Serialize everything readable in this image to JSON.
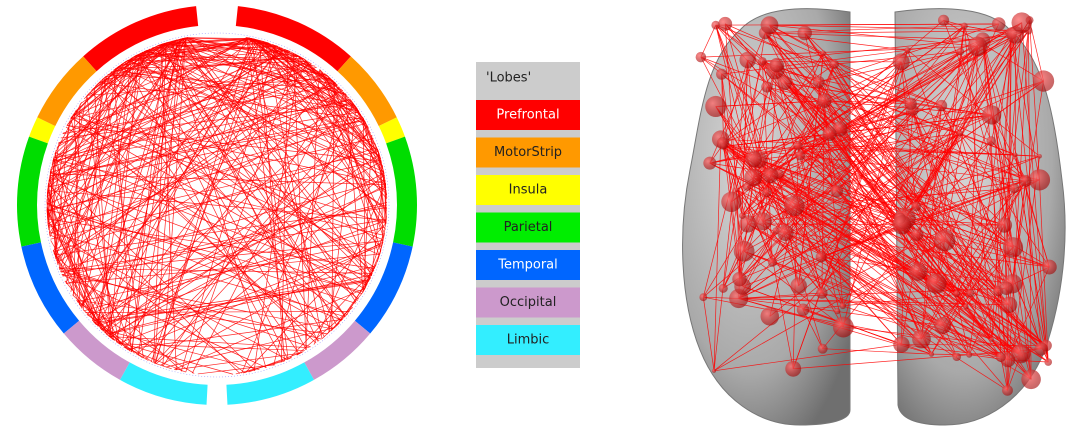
{
  "legend": {
    "title": "'Lobes'",
    "items": [
      {
        "label": "Prefrontal"
      },
      {
        "label": "MotorStrip"
      },
      {
        "label": "Insula"
      },
      {
        "label": "Parietal"
      },
      {
        "label": "Temporal"
      },
      {
        "label": "Occipital"
      },
      {
        "label": "Limbic"
      }
    ]
  }
}
